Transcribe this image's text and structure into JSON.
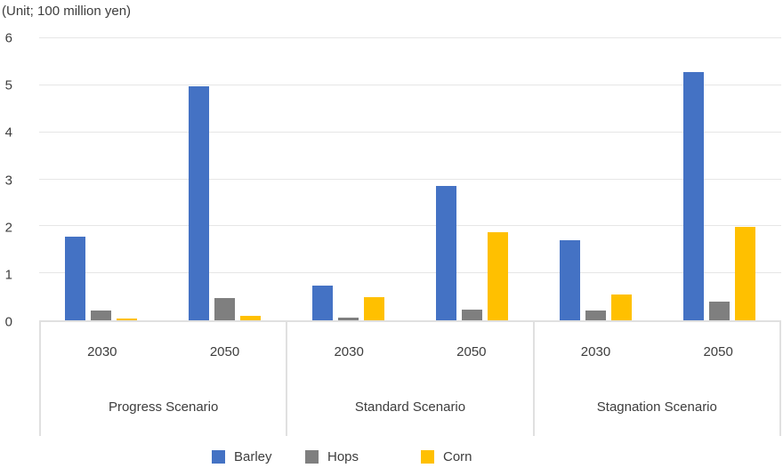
{
  "chart_data": {
    "type": "bar",
    "unit_label": "(Unit; 100 million yen)",
    "ylim": [
      0,
      6
    ],
    "yticks": [
      0,
      1,
      2,
      3,
      4,
      5,
      6
    ],
    "grid": true,
    "legend_position": "bottom",
    "series": [
      {
        "name": "Barley",
        "color": "#4472C4"
      },
      {
        "name": "Hops",
        "color": "#7F7F7F"
      },
      {
        "name": "Corn",
        "color": "#FFC000"
      }
    ],
    "scenarios": [
      {
        "label": "Progress Scenario",
        "years": [
          {
            "label": "2030",
            "values": {
              "Barley": 1.78,
              "Hops": 0.21,
              "Corn": 0.04
            }
          },
          {
            "label": "2050",
            "values": {
              "Barley": 4.97,
              "Hops": 0.48,
              "Corn": 0.09
            }
          }
        ]
      },
      {
        "label": "Standard Scenario",
        "years": [
          {
            "label": "2030",
            "values": {
              "Barley": 0.73,
              "Hops": 0.06,
              "Corn": 0.49
            }
          },
          {
            "label": "2050",
            "values": {
              "Barley": 2.85,
              "Hops": 0.22,
              "Corn": 1.87
            }
          }
        ]
      },
      {
        "label": "Stagnation Scenario",
        "years": [
          {
            "label": "2030",
            "values": {
              "Barley": 1.7,
              "Hops": 0.21,
              "Corn": 0.55
            }
          },
          {
            "label": "2050",
            "values": {
              "Barley": 5.29,
              "Hops": 0.4,
              "Corn": 1.99
            }
          }
        ]
      }
    ]
  },
  "legend": {
    "items": [
      {
        "label": "Barley",
        "color": "#4472C4"
      },
      {
        "label": "Hops",
        "color": "#7F7F7F"
      },
      {
        "label": "Corn",
        "color": "#FFC000"
      }
    ]
  },
  "colors": {
    "barley": "#4472C4",
    "hops": "#7F7F7F",
    "corn": "#FFC000",
    "gridline": "#E6E6E6",
    "axis_border": "#E0E0E0",
    "text": "#404040"
  }
}
